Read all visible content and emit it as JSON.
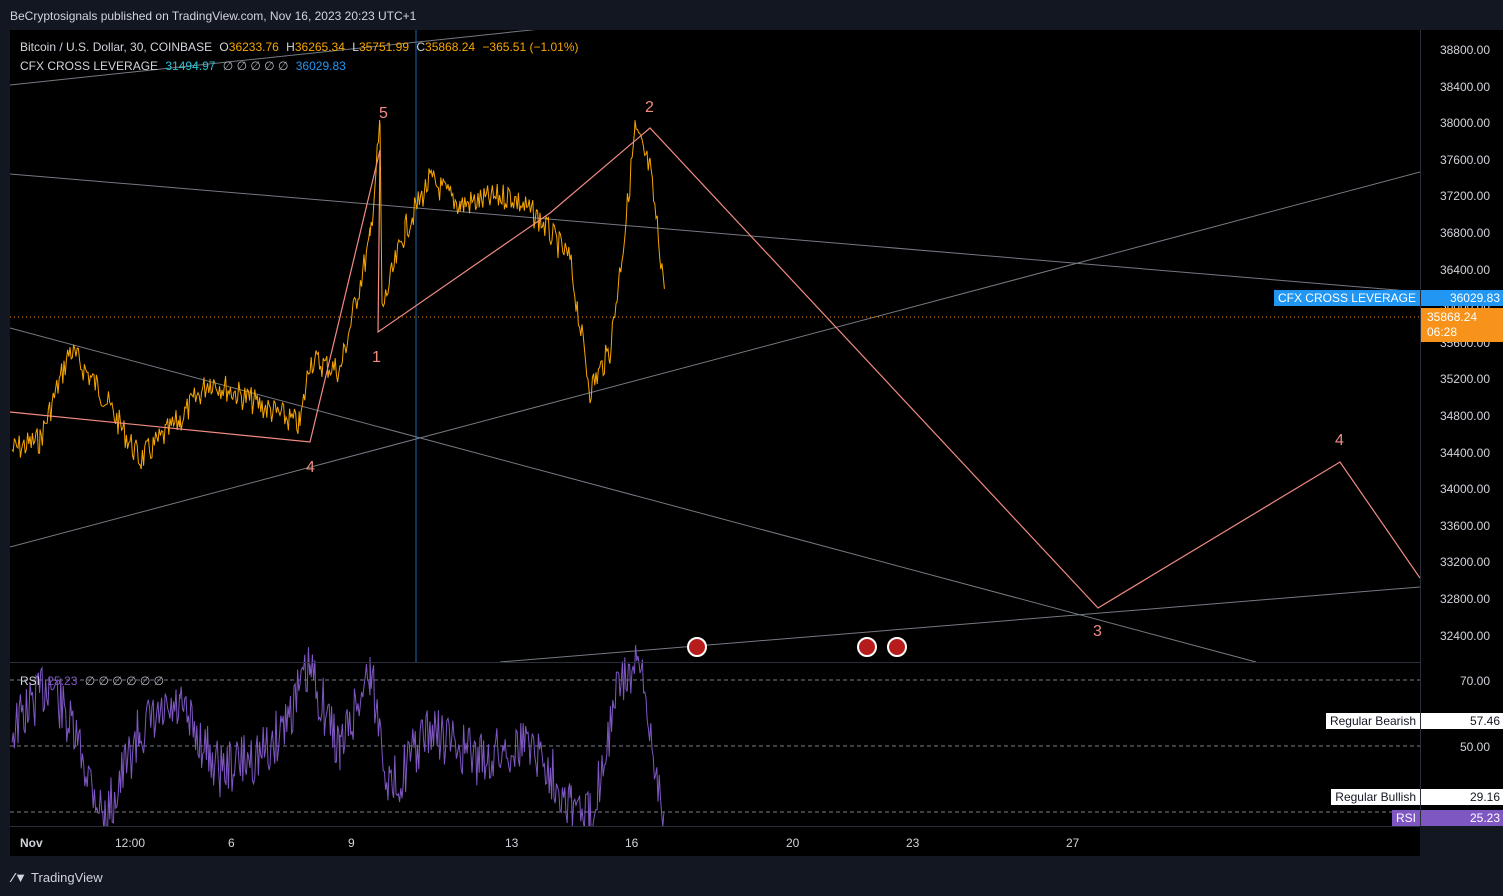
{
  "header": {
    "published": "BeCryptosignals published on TradingView.com, Nov 16, 2023 20:23 UTC+1"
  },
  "legend": {
    "symbol": "Bitcoin / U.S. Dollar, 30, COINBASE",
    "o_label": "O",
    "o": "36233.76",
    "h_label": "H",
    "h": "36265.34",
    "l_label": "L",
    "l": "35751.99",
    "c_label": "C",
    "c": "35868.24",
    "change": "−365.51 (−1.01%)",
    "indicator": "CFX CROSS LEVERAGE",
    "ind_v1": "31494.97",
    "ind_zeros": "∅ ∅ ∅ ∅ ∅",
    "ind_v2": "36029.83",
    "rsi_label": "RSI",
    "rsi_value": "25.23",
    "rsi_zeros": "∅ ∅ ∅ ∅ ∅ ∅"
  },
  "price_axis": [
    "38800.00",
    "38400.00",
    "38000.00",
    "37600.00",
    "37200.00",
    "36800.00",
    "36400.00",
    "36000.00",
    "35600.00",
    "35200.00",
    "34800.00",
    "34400.00",
    "34000.00",
    "33600.00",
    "33200.00",
    "32800.00",
    "32400.00"
  ],
  "rsi_axis": [
    "70.00",
    "50.00"
  ],
  "time_axis": [
    "Nov",
    "12:00",
    "6",
    "9",
    "13",
    "16",
    "20",
    "23",
    "27"
  ],
  "price_tags": {
    "cfx_label": "CFX CROSS LEVERAGE",
    "cfx_value": "36029.83",
    "last_price": "35868.24",
    "countdown": "06:28"
  },
  "rsi_tags": {
    "bear_label": "Regular Bearish",
    "bear_value": "57.46",
    "bull_label": "Regular Bullish",
    "bull_value": "29.16",
    "rsi_label": "RSI",
    "rsi_value": "25.23"
  },
  "waves": [
    "4",
    "5",
    "1",
    "2",
    "3",
    "4"
  ],
  "colors": {
    "price": "#f7a600",
    "wave": "#f28b82",
    "rsi": "#7e57c2",
    "cfx": "#2196f3",
    "last": "#f7931a"
  },
  "footer": {
    "brand": "TradingView"
  }
}
